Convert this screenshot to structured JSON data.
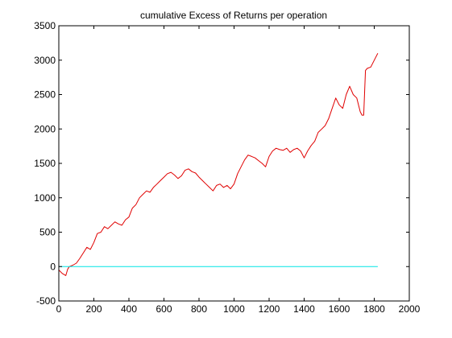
{
  "chart_data": {
    "type": "line",
    "title": "cumulative Excess of Returns per operation",
    "xlabel": "",
    "ylabel": "",
    "xlim": [
      0,
      2000
    ],
    "ylim": [
      -500,
      3500
    ],
    "x_ticks": [
      0,
      200,
      400,
      600,
      800,
      1000,
      1200,
      1400,
      1600,
      1800,
      2000
    ],
    "y_ticks": [
      -500,
      0,
      500,
      1000,
      1500,
      2000,
      2500,
      3000,
      3500
    ],
    "grid": false,
    "legend": "none",
    "series": [
      {
        "color": "#e00000",
        "x": [
          0,
          20,
          40,
          50,
          60,
          80,
          100,
          120,
          140,
          160,
          180,
          200,
          220,
          240,
          260,
          280,
          300,
          320,
          340,
          360,
          380,
          400,
          420,
          440,
          460,
          480,
          500,
          520,
          540,
          560,
          580,
          600,
          620,
          640,
          660,
          680,
          700,
          720,
          740,
          760,
          780,
          800,
          820,
          840,
          860,
          880,
          900,
          920,
          940,
          960,
          980,
          1000,
          1020,
          1040,
          1060,
          1080,
          1100,
          1120,
          1140,
          1160,
          1180,
          1200,
          1220,
          1240,
          1260,
          1280,
          1300,
          1320,
          1340,
          1360,
          1380,
          1400,
          1420,
          1440,
          1460,
          1480,
          1500,
          1520,
          1540,
          1560,
          1580,
          1600,
          1620,
          1640,
          1660,
          1680,
          1700,
          1720,
          1730,
          1740,
          1750,
          1760,
          1780,
          1800,
          1820
        ],
        "y": [
          -50,
          -100,
          -130,
          -40,
          0,
          20,
          50,
          120,
          200,
          280,
          250,
          350,
          480,
          500,
          580,
          550,
          600,
          650,
          620,
          600,
          680,
          720,
          850,
          900,
          1000,
          1050,
          1100,
          1080,
          1150,
          1200,
          1250,
          1300,
          1350,
          1370,
          1330,
          1280,
          1320,
          1400,
          1420,
          1380,
          1360,
          1300,
          1250,
          1200,
          1150,
          1100,
          1180,
          1200,
          1150,
          1180,
          1130,
          1200,
          1350,
          1450,
          1550,
          1620,
          1600,
          1580,
          1540,
          1500,
          1450,
          1600,
          1680,
          1720,
          1700,
          1690,
          1720,
          1660,
          1700,
          1720,
          1680,
          1580,
          1680,
          1760,
          1820,
          1950,
          2000,
          2050,
          2150,
          2300,
          2450,
          2350,
          2300,
          2500,
          2620,
          2500,
          2450,
          2250,
          2200,
          2200,
          2850,
          2880,
          2900,
          3000,
          3100
        ]
      },
      {
        "color": "#00e5e5",
        "x": [
          0,
          1820
        ],
        "y": [
          0,
          0
        ]
      }
    ]
  }
}
